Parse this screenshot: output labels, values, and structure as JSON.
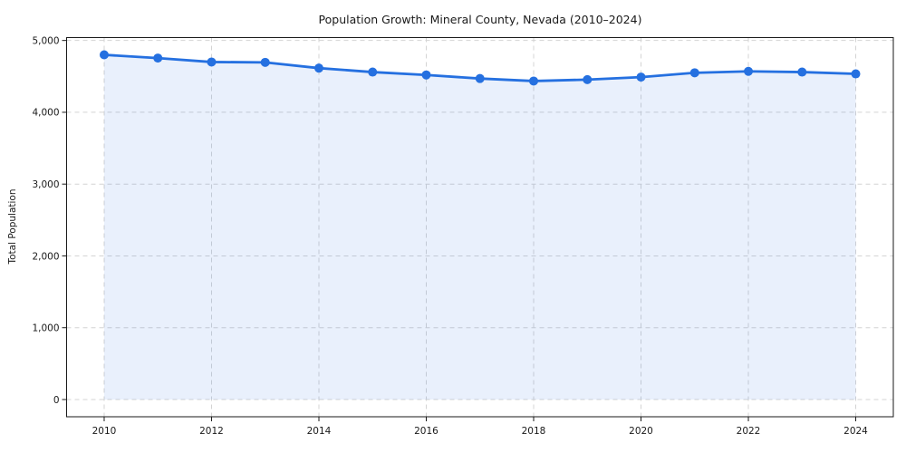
{
  "chart_data": {
    "type": "area",
    "title": "Population Growth: Mineral County, Nevada (2010–2024)",
    "xlabel": "",
    "ylabel": "Total Population",
    "x": [
      2010,
      2011,
      2012,
      2013,
      2014,
      2015,
      2016,
      2017,
      2018,
      2019,
      2020,
      2021,
      2022,
      2023,
      2024
    ],
    "series": [
      {
        "name": "Total Population",
        "values": [
          4800,
          4755,
          4700,
          4695,
          4615,
          4560,
          4520,
          4470,
          4435,
          4455,
          4490,
          4550,
          4570,
          4560,
          4535
        ]
      }
    ],
    "xticks": [
      2010,
      2012,
      2014,
      2016,
      2018,
      2020,
      2022,
      2024
    ],
    "yticks": [
      {
        "value": 0,
        "label": "0"
      },
      {
        "value": 1000,
        "label": "1,000"
      },
      {
        "value": 2000,
        "label": "2,000"
      },
      {
        "value": 3000,
        "label": "3,000"
      },
      {
        "value": 4000,
        "label": "4,000"
      },
      {
        "value": 5000,
        "label": "5,000"
      }
    ],
    "xlim": [
      2009.3,
      2024.7
    ],
    "ylim": [
      -240,
      5040
    ],
    "grid": "dashed-both-axes",
    "legend": "none",
    "marker": "circle",
    "colors": {
      "line": "#2570e0",
      "fill": "rgba(37,112,224,0.10)",
      "grid": "#d4d4d4",
      "spine": "#1a1a1a",
      "text": "#1a1a1a",
      "background": "#ffffff"
    }
  }
}
